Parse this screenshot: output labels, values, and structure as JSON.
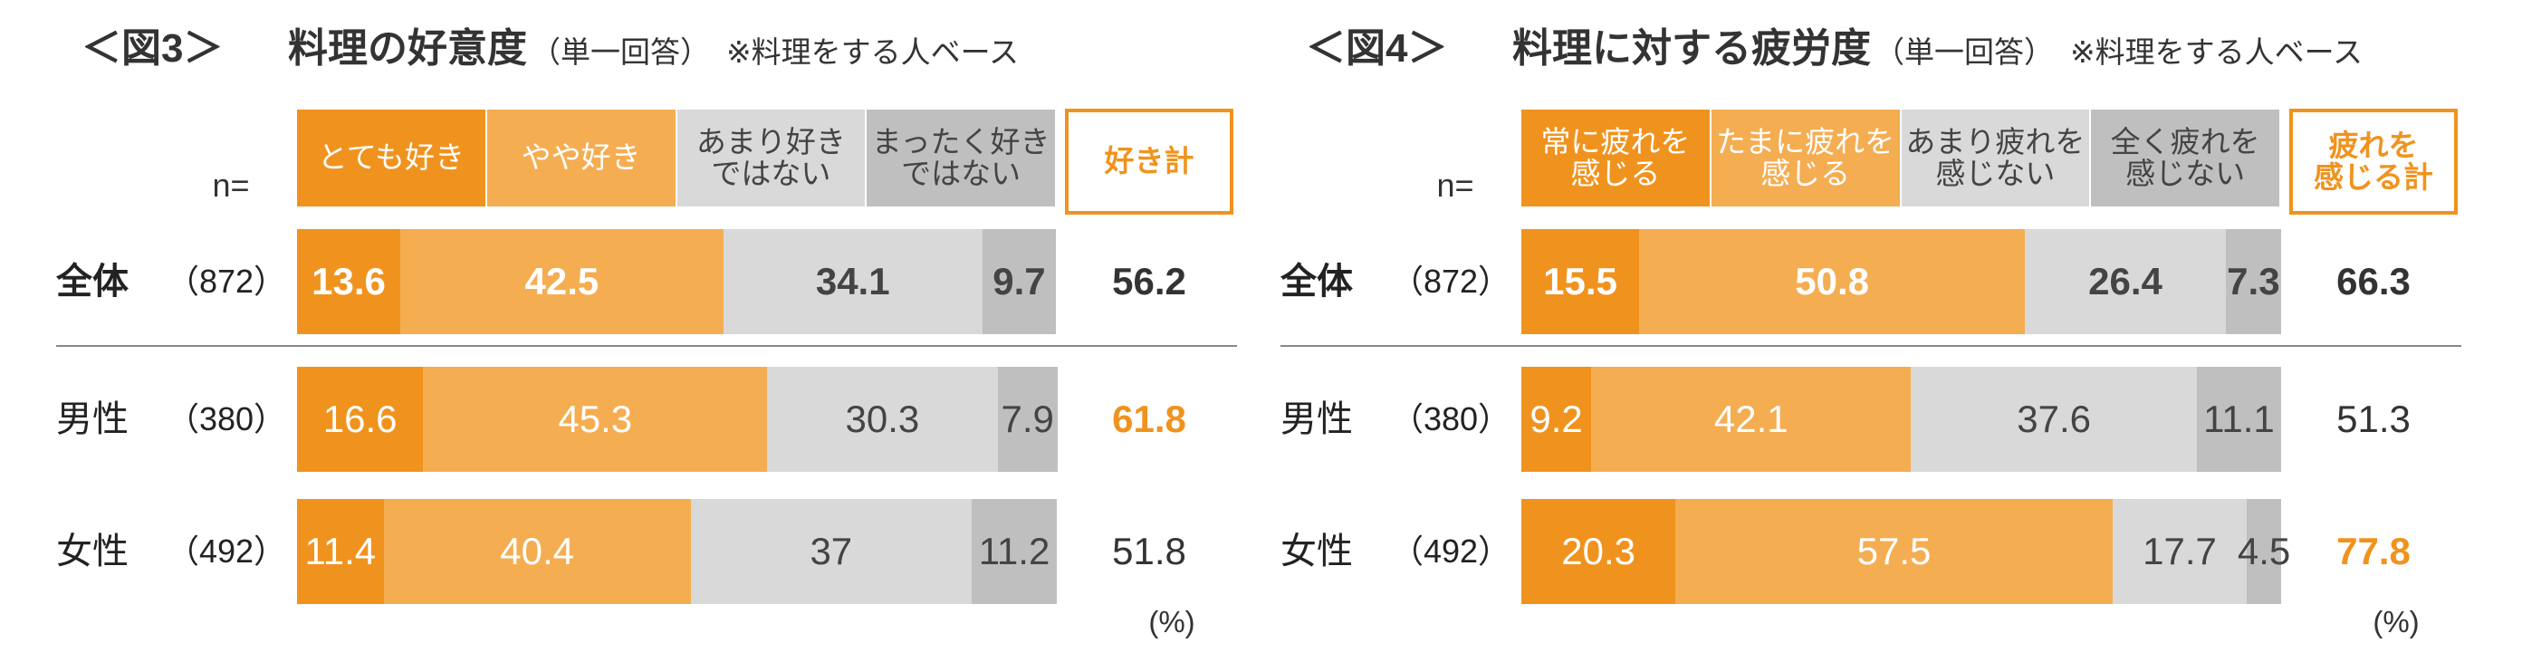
{
  "chart_data": [
    {
      "type": "bar",
      "title": "＜図3＞",
      "subtitle": "料理の好意度",
      "note": "（単一回答）",
      "base": "※料理をする人ベース",
      "n_label": "n=",
      "categories": [
        "全体",
        "男性",
        "女性"
      ],
      "sample_sizes": [
        "（872）",
        "（380）",
        "（492）"
      ],
      "xlim": [
        0,
        100
      ],
      "series": [
        {
          "name": "とても好き",
          "color": "#f0931e",
          "values": [
            13.6,
            16.6,
            11.4
          ]
        },
        {
          "name": "やや好き",
          "color": "#f5ad52",
          "values": [
            42.5,
            45.3,
            40.4
          ]
        },
        {
          "name": "あまり好き\nではない",
          "color": "#d9d9d9",
          "values": [
            34.1,
            30.3,
            37
          ]
        },
        {
          "name": "まったく好き\nではない",
          "color": "#bfbfbf",
          "values": [
            9.7,
            7.9,
            11.2
          ]
        }
      ],
      "total_name": "好き計",
      "totals": [
        56.2,
        61.8,
        51.8
      ],
      "highlight_index": 1,
      "unit": "(%)"
    },
    {
      "type": "bar",
      "title": "＜図4＞",
      "subtitle": "料理に対する疲労度",
      "note": "（単一回答）",
      "base": "※料理をする人ベース",
      "n_label": "n=",
      "categories": [
        "全体",
        "男性",
        "女性"
      ],
      "sample_sizes": [
        "（872）",
        "（380）",
        "（492）"
      ],
      "xlim": [
        0,
        100
      ],
      "series": [
        {
          "name": "常に疲れを\n感じる",
          "color": "#f0931e",
          "values": [
            15.5,
            9.2,
            20.3
          ]
        },
        {
          "name": "たまに疲れを\n感じる",
          "color": "#f5ad52",
          "values": [
            50.8,
            42.1,
            57.5
          ]
        },
        {
          "name": "あまり疲れを\n感じない",
          "color": "#d9d9d9",
          "values": [
            26.4,
            37.6,
            17.7
          ]
        },
        {
          "name": "全く疲れを\n感じない",
          "color": "#bfbfbf",
          "values": [
            7.3,
            11.1,
            4.5
          ]
        }
      ],
      "total_name": "疲れを\n感じる計",
      "totals": [
        66.3,
        51.3,
        77.8
      ],
      "highlight_index": 2,
      "unit": "(%)"
    }
  ]
}
